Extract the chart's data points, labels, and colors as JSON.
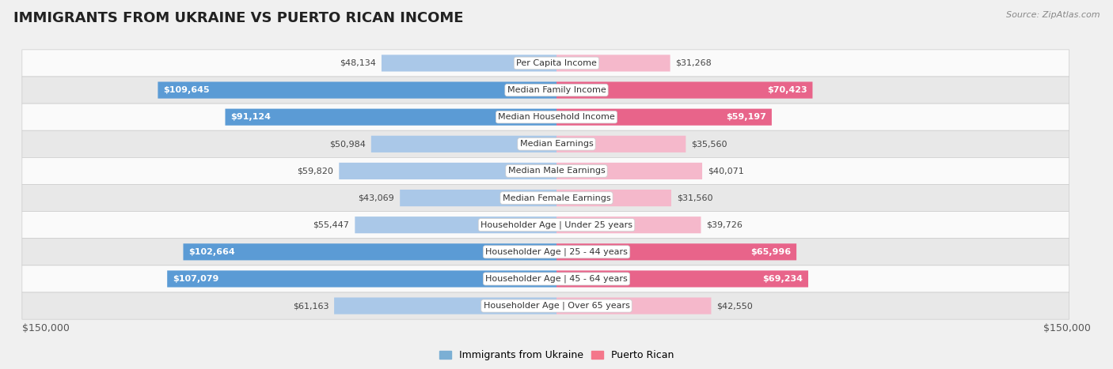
{
  "title": "IMMIGRANTS FROM UKRAINE VS PUERTO RICAN INCOME",
  "source": "Source: ZipAtlas.com",
  "categories": [
    "Per Capita Income",
    "Median Family Income",
    "Median Household Income",
    "Median Earnings",
    "Median Male Earnings",
    "Median Female Earnings",
    "Householder Age | Under 25 years",
    "Householder Age | 25 - 44 years",
    "Householder Age | 45 - 64 years",
    "Householder Age | Over 65 years"
  ],
  "ukraine_values": [
    48134,
    109645,
    91124,
    50984,
    59820,
    43069,
    55447,
    102664,
    107079,
    61163
  ],
  "puertorico_values": [
    31268,
    70423,
    59197,
    35560,
    40071,
    31560,
    39726,
    65996,
    69234,
    42550
  ],
  "ukraine_labels": [
    "$48,134",
    "$109,645",
    "$91,124",
    "$50,984",
    "$59,820",
    "$43,069",
    "$55,447",
    "$102,664",
    "$107,079",
    "$61,163"
  ],
  "puertorico_labels": [
    "$31,268",
    "$70,423",
    "$59,197",
    "$35,560",
    "$40,071",
    "$31,560",
    "$39,726",
    "$65,996",
    "$69,234",
    "$42,550"
  ],
  "ukraine_color_light": "#aac8e8",
  "ukraine_color_dark": "#5b9bd5",
  "puertorico_color_light": "#f5b8cb",
  "puertorico_color_dark": "#e8648a",
  "ukraine_legend_color": "#7bafd4",
  "puertorico_legend_color": "#f4768a",
  "max_value": 150000,
  "xlabel_left": "$150,000",
  "xlabel_right": "$150,000",
  "bg_color": "#f0f0f0",
  "row_bg_light": "#fafafa",
  "row_bg_dark": "#e8e8e8",
  "bar_height": 0.62,
  "title_fontsize": 13,
  "label_fontsize": 8,
  "category_fontsize": 8,
  "ukraine_dark_threshold": 80000,
  "puertorico_dark_threshold": 55000
}
